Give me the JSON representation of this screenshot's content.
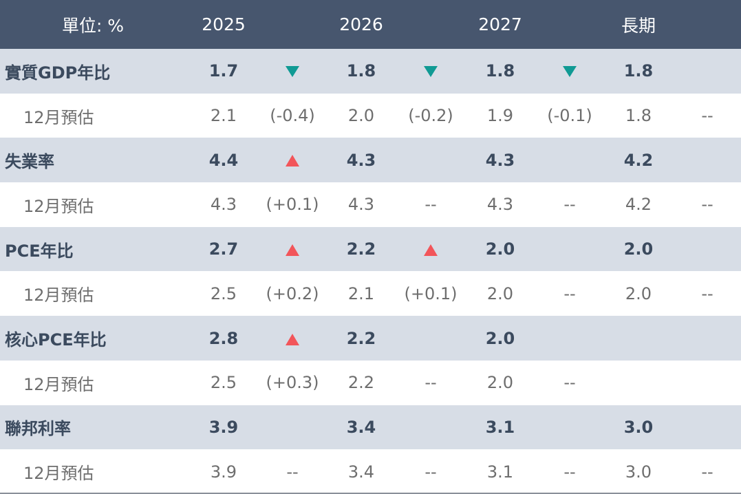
{
  "header": [
    "單位: %",
    "2025",
    null,
    "2026",
    null,
    "2027",
    null,
    "長期",
    null
  ],
  "rows": [
    {
      "label": "實質GDP年比",
      "cells": [
        "1.7",
        null,
        "1.8",
        null,
        "1.8",
        null,
        "1.8",
        null
      ]
    },
    {
      "label": "12月預估",
      "cells": [
        "2.1",
        "(-0.4)",
        "2.0",
        "(-0.2)",
        "1.9",
        "(-0.1)",
        "1.8",
        "--"
      ]
    },
    {
      "label": "失業率",
      "cells": [
        "4.4",
        null,
        "4.3",
        null,
        "4.3",
        null,
        "4.2",
        null
      ]
    },
    {
      "label": "12月預估",
      "cells": [
        "4.3",
        "(+0.1)",
        "4.3",
        "--",
        "4.3",
        "--",
        "4.2",
        "--"
      ]
    },
    {
      "label": "PCE年比",
      "cells": [
        "2.7",
        null,
        "2.2",
        null,
        "2.0",
        null,
        "2.0",
        null
      ]
    },
    {
      "label": "12月預估",
      "cells": [
        "2.5",
        "(+0.2)",
        "2.1",
        "(+0.1)",
        "2.0",
        "--",
        "2.0",
        "--"
      ]
    },
    {
      "label": "核心PCE年比",
      "cells": [
        "2.8",
        null,
        "2.2",
        null,
        "2.0",
        null,
        null,
        null
      ]
    },
    {
      "label": "12月預估",
      "cells": [
        "2.5",
        "(+0.3)",
        "2.2",
        "--",
        "2.0",
        "--",
        null,
        null
      ]
    },
    {
      "label": "聯邦利率",
      "cells": [
        "3.9",
        null,
        "3.4",
        null,
        "3.1",
        null,
        "3.0",
        null
      ]
    },
    {
      "label": "12月預估",
      "cells": [
        "3.9",
        "--",
        "3.4",
        "--",
        "3.1",
        "--",
        "3.0",
        "--"
      ]
    }
  ]
}
